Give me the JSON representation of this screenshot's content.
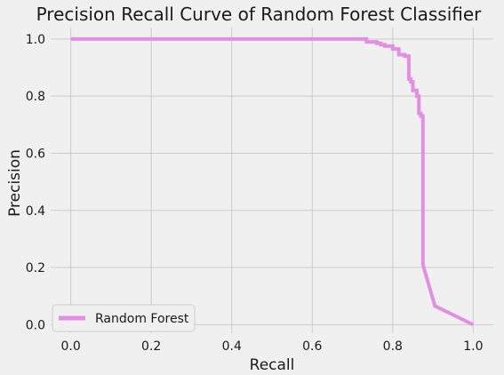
{
  "chart_data": {
    "type": "line",
    "title": "Precision Recall Curve of Random Forest Classifier",
    "xlabel": "Recall",
    "ylabel": "Precision",
    "xlim": [
      -0.05,
      1.05
    ],
    "ylim": [
      -0.03,
      1.04
    ],
    "xticks": [
      0.0,
      0.2,
      0.4,
      0.6,
      0.8,
      1.0
    ],
    "yticks": [
      0.0,
      0.2,
      0.4,
      0.6,
      0.8,
      1.0
    ],
    "xtick_labels": [
      "0.0",
      "0.2",
      "0.4",
      "0.6",
      "0.8",
      "1.0"
    ],
    "ytick_labels": [
      "0.0",
      "0.2",
      "0.4",
      "0.6",
      "0.8",
      "1.0"
    ],
    "grid": true,
    "legend_position": "lower-left",
    "series": [
      {
        "name": "Random Forest",
        "color": "#e38ee3",
        "x": [
          0.0,
          0.735,
          0.735,
          0.76,
          0.76,
          0.77,
          0.77,
          0.78,
          0.78,
          0.8,
          0.8,
          0.815,
          0.815,
          0.83,
          0.83,
          0.84,
          0.84,
          0.845,
          0.845,
          0.85,
          0.85,
          0.86,
          0.86,
          0.865,
          0.865,
          0.87,
          0.87,
          0.875,
          0.875,
          0.905,
          0.92,
          1.0
        ],
        "y": [
          1.0,
          1.0,
          0.99,
          0.99,
          0.985,
          0.985,
          0.98,
          0.98,
          0.975,
          0.975,
          0.965,
          0.965,
          0.945,
          0.945,
          0.94,
          0.94,
          0.86,
          0.86,
          0.85,
          0.85,
          0.82,
          0.82,
          0.8,
          0.8,
          0.74,
          0.74,
          0.73,
          0.73,
          0.21,
          0.065,
          0.055,
          0.0
        ]
      }
    ]
  }
}
